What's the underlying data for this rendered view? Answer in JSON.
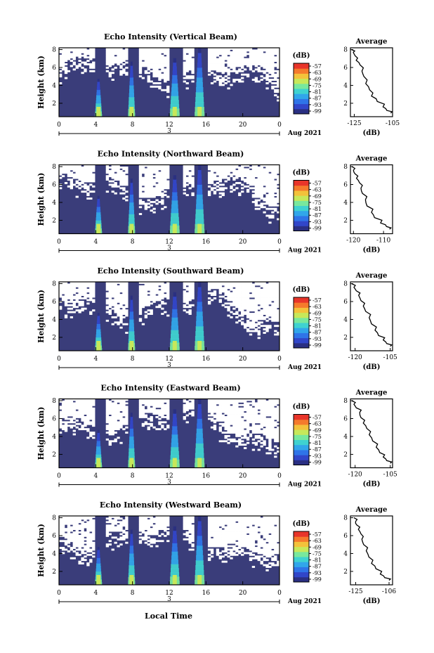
{
  "figure": {
    "xlabel_bottom": "Local Time",
    "colors": {
      "background": "#ffffff",
      "noecho": "#3a3d7a",
      "axes": "#000000",
      "colormap": [
        "#2a2f82",
        "#3146c9",
        "#2f74e8",
        "#31a6ea",
        "#3fd2d0",
        "#78e89d",
        "#c7e85a",
        "#f3c23b",
        "#f57a2c",
        "#e8352a"
      ]
    },
    "colorbar": {
      "unit": "(dB)",
      "ticks": [
        "-57",
        "-63",
        "-69",
        "-75",
        "-81",
        "-87",
        "-93",
        "-99"
      ]
    }
  },
  "chart_data": [
    {
      "type": "heatmap",
      "title": "Echo Intensity (Vertical Beam)",
      "ylabel": "Height (km)",
      "x_ticks": [
        "0",
        "4",
        "8",
        "12",
        "16",
        "20",
        "0"
      ],
      "x_range": [
        0,
        24
      ],
      "y_ticks": [
        "2",
        "4",
        "6",
        "8"
      ],
      "y_range": [
        0.5,
        8.2
      ],
      "date_label": "Aug 2021",
      "day_label": "3",
      "plumes_local_time_h": [
        4.3,
        7.9,
        12.6,
        15.3
      ],
      "profile": {
        "title": "Average",
        "xlabel": "(dB)",
        "x_ticks": [
          "-125",
          "-105"
        ],
        "x_range": [
          -127,
          -105
        ],
        "y_ticks": [
          "2",
          "4",
          "6",
          "8"
        ],
        "y_range": [
          0.5,
          8.2
        ],
        "x": [
          -126.5,
          -125.5,
          -124.5,
          -124,
          -122,
          -121,
          -120,
          -119,
          -117,
          -116,
          -113,
          -110,
          -108,
          -106
        ],
        "y": [
          8.0,
          7.7,
          7.3,
          6.8,
          6.3,
          5.6,
          5.0,
          4.2,
          3.5,
          2.8,
          2.2,
          1.6,
          1.2,
          0.9
        ]
      }
    },
    {
      "type": "heatmap",
      "title": "Echo Intensity (Northward Beam)",
      "ylabel": "Height (km)",
      "x_ticks": [
        "0",
        "4",
        "8",
        "12",
        "16",
        "20",
        "0"
      ],
      "x_range": [
        0,
        24
      ],
      "y_ticks": [
        "2",
        "4",
        "6",
        "8"
      ],
      "y_range": [
        0.5,
        8.2
      ],
      "date_label": "Aug 2021",
      "day_label": "3",
      "plumes_local_time_h": [
        4.3,
        7.9,
        12.6,
        15.3
      ],
      "profile": {
        "title": "Average",
        "xlabel": "(dB)",
        "x_ticks": [
          "-120",
          "-110"
        ],
        "x_range": [
          -121,
          -107
        ],
        "y_ticks": [
          "2",
          "4",
          "6",
          "8"
        ],
        "y_range": [
          0.5,
          8.2
        ],
        "x": [
          -120.5,
          -120,
          -119.5,
          -119,
          -118,
          -117.5,
          -117,
          -116,
          -115.5,
          -114,
          -113,
          -111,
          -109,
          -108
        ],
        "y": [
          8.0,
          7.6,
          7.2,
          6.7,
          6.2,
          5.6,
          5.0,
          4.3,
          3.6,
          2.9,
          2.3,
          1.7,
          1.3,
          1.0
        ]
      }
    },
    {
      "type": "heatmap",
      "title": "Echo Intensity (Southward Beam)",
      "ylabel": "Height (km)",
      "x_ticks": [
        "0",
        "4",
        "8",
        "12",
        "16",
        "20",
        "0"
      ],
      "x_range": [
        0,
        24
      ],
      "y_ticks": [
        "2",
        "4",
        "6",
        "8"
      ],
      "y_range": [
        0.5,
        8.2
      ],
      "date_label": "Aug 2021",
      "day_label": "3",
      "plumes_local_time_h": [
        4.3,
        7.9,
        12.6,
        15.3
      ],
      "profile": {
        "title": "Average",
        "xlabel": "(dB)",
        "x_ticks": [
          "-120",
          "-105"
        ],
        "x_range": [
          -122,
          -104
        ],
        "y_ticks": [
          "2",
          "4",
          "6",
          "8"
        ],
        "y_range": [
          0.5,
          8.2
        ],
        "x": [
          -121.5,
          -120.5,
          -119.5,
          -118.5,
          -117.5,
          -116.5,
          -115.5,
          -114,
          -113,
          -111.5,
          -110,
          -108,
          -106.5,
          -105
        ],
        "y": [
          8.0,
          7.6,
          7.2,
          6.7,
          6.1,
          5.5,
          4.9,
          4.2,
          3.5,
          2.8,
          2.2,
          1.7,
          1.3,
          1.0
        ]
      }
    },
    {
      "type": "heatmap",
      "title": "Echo Intensity (Eastward Beam)",
      "ylabel": "Height (km)",
      "x_ticks": [
        "0",
        "4",
        "8",
        "12",
        "16",
        "20",
        "0"
      ],
      "x_range": [
        0,
        24
      ],
      "y_ticks": [
        "2",
        "4",
        "6",
        "8"
      ],
      "y_range": [
        0.5,
        8.2
      ],
      "date_label": "Aug 2021",
      "day_label": "3",
      "plumes_local_time_h": [
        4.3,
        7.9,
        12.6,
        15.3
      ],
      "profile": {
        "title": "Average",
        "xlabel": "(dB)",
        "x_ticks": [
          "-120",
          "-105"
        ],
        "x_range": [
          -122,
          -104
        ],
        "y_ticks": [
          "2",
          "4",
          "6",
          "8"
        ],
        "y_range": [
          0.5,
          8.2
        ],
        "x": [
          -121.5,
          -120.5,
          -119.5,
          -118,
          -117.5,
          -116.5,
          -115,
          -114,
          -112.5,
          -111,
          -109.5,
          -108,
          -106.5,
          -105
        ],
        "y": [
          8.0,
          7.6,
          7.2,
          6.7,
          6.1,
          5.5,
          4.9,
          4.2,
          3.5,
          2.8,
          2.2,
          1.7,
          1.3,
          1.0
        ]
      }
    },
    {
      "type": "heatmap",
      "title": "Echo Intensity (Westward Beam)",
      "ylabel": "Height (km)",
      "x_ticks": [
        "0",
        "4",
        "8",
        "12",
        "16",
        "20",
        "0"
      ],
      "x_range": [
        0,
        24
      ],
      "y_ticks": [
        "2",
        "4",
        "6",
        "8"
      ],
      "y_range": [
        0.5,
        8.2
      ],
      "date_label": "Aug 2021",
      "day_label": "3",
      "plumes_local_time_h": [
        4.3,
        7.9,
        12.6,
        15.3
      ],
      "profile": {
        "title": "Average",
        "xlabel": "(dB)",
        "x_ticks": [
          "-125",
          "-106"
        ],
        "x_range": [
          -128,
          -104
        ],
        "y_ticks": [
          "2",
          "4",
          "6",
          "8"
        ],
        "y_range": [
          0.5,
          8.2
        ],
        "x": [
          -126,
          -125,
          -124.5,
          -123.5,
          -122,
          -121.5,
          -120.5,
          -119,
          -117.5,
          -116,
          -113.5,
          -111,
          -108.5,
          -106
        ],
        "y": [
          8.0,
          7.6,
          7.2,
          6.7,
          6.2,
          5.6,
          5.0,
          4.3,
          3.6,
          2.9,
          2.3,
          1.7,
          1.3,
          1.0
        ]
      }
    }
  ]
}
